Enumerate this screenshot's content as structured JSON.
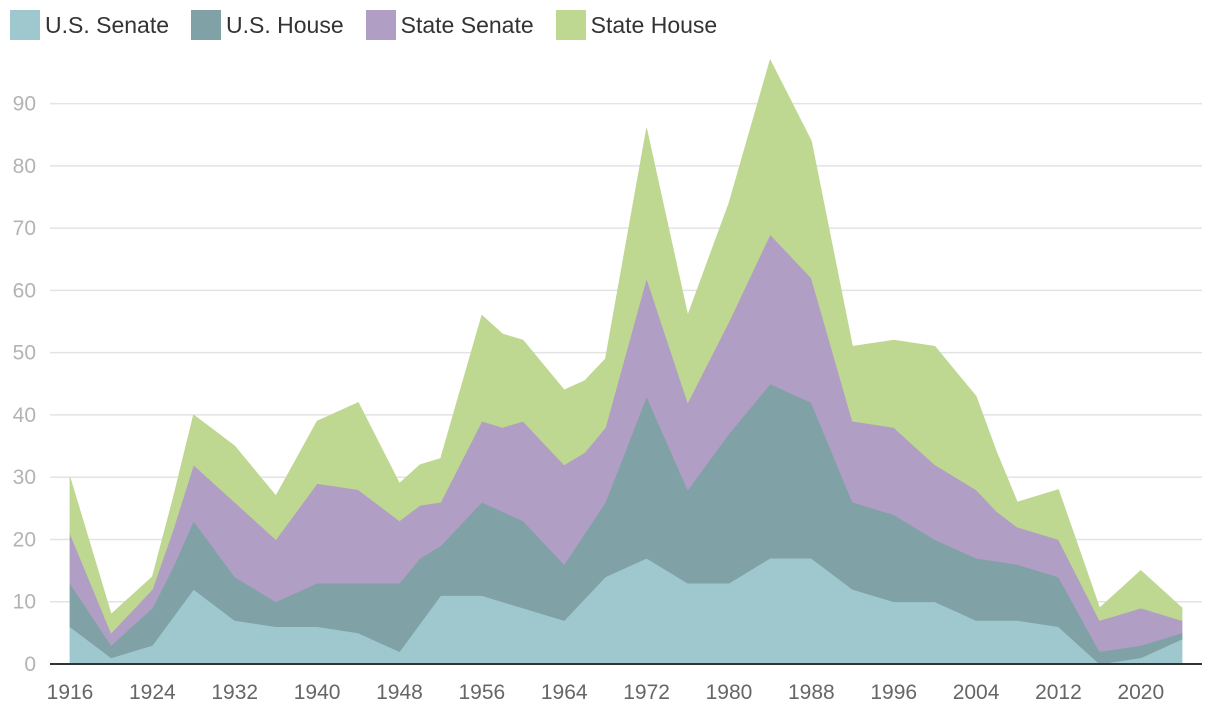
{
  "chart_data": {
    "type": "area",
    "stacked": true,
    "x": [
      1916,
      1918,
      1920,
      1922,
      1924,
      1926,
      1928,
      1930,
      1932,
      1934,
      1936,
      1938,
      1940,
      1942,
      1944,
      1946,
      1948,
      1950,
      1952,
      1954,
      1956,
      1958,
      1960,
      1962,
      1964,
      1966,
      1968,
      1970,
      1972,
      1974,
      1976,
      1978,
      1980,
      1982,
      1984,
      1986,
      1988,
      1990,
      1992,
      1994,
      1996,
      1998,
      2000,
      2002,
      2004,
      2006,
      2008,
      2010,
      2012,
      2014,
      2016,
      2018,
      2020,
      2022,
      2024
    ],
    "series": [
      {
        "name": "U.S. Senate",
        "color": "#9ec8cd",
        "values": [
          6,
          3.5,
          1,
          2,
          3,
          7.5,
          12,
          9.5,
          7,
          6.5,
          6,
          6,
          6,
          5.5,
          5,
          3.5,
          2,
          6.5,
          11,
          11,
          11,
          10,
          9,
          8,
          7,
          10.5,
          14,
          15.5,
          17,
          15,
          13,
          13,
          13,
          15,
          17,
          17,
          17,
          14.5,
          12,
          11,
          10,
          10,
          10,
          8.5,
          7,
          7,
          7,
          6.5,
          6,
          3,
          0,
          0.5,
          1,
          2.5,
          4
        ]
      },
      {
        "name": "U.S. House",
        "color": "#80a2a6",
        "values": [
          7,
          4.5,
          2,
          4,
          6,
          8,
          11,
          9,
          7,
          5.5,
          4,
          5.5,
          7,
          7.5,
          8,
          9.5,
          11,
          10.5,
          8,
          11.5,
          15,
          14.5,
          14,
          11.5,
          9,
          10.5,
          12,
          19,
          26,
          20.5,
          15,
          19.5,
          24,
          26,
          28,
          26.5,
          25,
          19.5,
          14,
          14,
          14,
          12,
          10,
          10,
          10,
          9.5,
          9,
          8.5,
          8,
          5,
          2,
          2,
          2,
          1.5,
          1
        ]
      },
      {
        "name": "State Senate",
        "color": "#b19ec4",
        "values": [
          8,
          5,
          2,
          2.5,
          3,
          6,
          9,
          10.5,
          12,
          11,
          10,
          13,
          16,
          15.5,
          15,
          12.5,
          10,
          8.5,
          7,
          10,
          13,
          13.5,
          16,
          16,
          16,
          13,
          12,
          15.5,
          19,
          16.5,
          14,
          16,
          18,
          21,
          24,
          22,
          20,
          16.5,
          13,
          13.5,
          14,
          13,
          12,
          11.5,
          11,
          8,
          6,
          6,
          6,
          5.5,
          5,
          5.5,
          6,
          4,
          2
        ]
      },
      {
        "name": "State House",
        "color": "#bfd891",
        "values": [
          9,
          6,
          3,
          2.5,
          2,
          5,
          8,
          8.5,
          9,
          8,
          7,
          8.5,
          10,
          12,
          14,
          10,
          6,
          6.5,
          7,
          12,
          17,
          15,
          13,
          12.5,
          12,
          11.5,
          11,
          17.5,
          24,
          19,
          14,
          16.5,
          19,
          23.5,
          28,
          25,
          22,
          17,
          12,
          13,
          14,
          16.5,
          19,
          17,
          15,
          9.5,
          4,
          6,
          8,
          5,
          2,
          4,
          6,
          4,
          2
        ]
      }
    ],
    "xticks": [
      "1916",
      "1924",
      "1932",
      "1940",
      "1948",
      "1956",
      "1964",
      "1972",
      "1980",
      "1988",
      "1996",
      "2004",
      "2012",
      "2020"
    ],
    "yticks": [
      "0",
      "10",
      "20",
      "30",
      "40",
      "50",
      "60",
      "70",
      "80",
      "90"
    ],
    "xlim": [
      1916,
      2024
    ],
    "ylim": [
      0,
      97
    ],
    "grid": true,
    "legend_position": "top-left",
    "title": "",
    "xlabel": "",
    "ylabel": ""
  }
}
